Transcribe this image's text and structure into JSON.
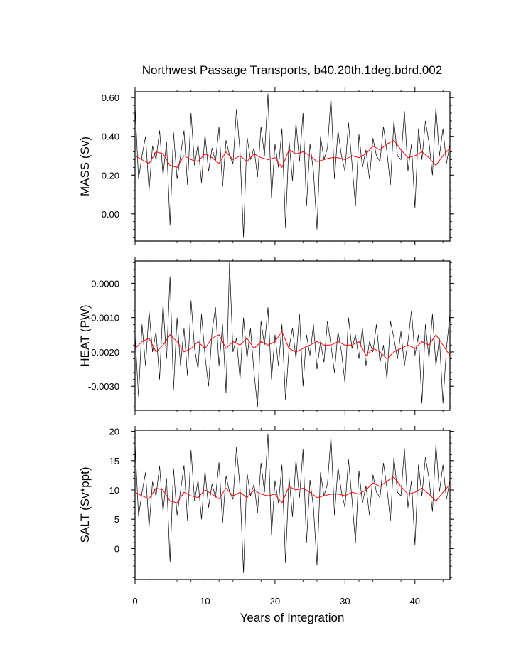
{
  "title": "Northwest Passage Transports, b40.20th.1deg.bdrd.002",
  "xlabel": "Years of Integration",
  "x_ticks": [
    "0",
    "10",
    "20",
    "30",
    "40"
  ],
  "colors": {
    "monthly": "#000000",
    "annual": "#ff0000",
    "frame": "#000000"
  },
  "chart_data": [
    {
      "type": "line",
      "name": "mass",
      "ylabel": "MASS (Sv)",
      "xlim": [
        0,
        45
      ],
      "ylim": [
        -0.14,
        0.63
      ],
      "y_ticks": [
        0.0,
        0.2,
        0.4,
        0.6
      ],
      "y_tick_labels": [
        "0.00",
        "0.20",
        "0.40",
        "0.60"
      ],
      "x": [
        0,
        0.5,
        1,
        1.5,
        2,
        2.5,
        3,
        3.5,
        4,
        4.5,
        5,
        5.5,
        6,
        6.5,
        7,
        7.5,
        8,
        8.5,
        9,
        9.5,
        10,
        10.5,
        11,
        11.5,
        12,
        12.5,
        13,
        13.5,
        14,
        14.5,
        15,
        15.5,
        16,
        16.5,
        17,
        17.5,
        18,
        18.5,
        19,
        19.5,
        20,
        20.5,
        21,
        21.5,
        22,
        22.5,
        23,
        23.5,
        24,
        24.5,
        25,
        25.5,
        26,
        26.5,
        27,
        27.5,
        28,
        28.5,
        29,
        29.5,
        30,
        30.5,
        31,
        31.5,
        32,
        32.5,
        33,
        33.5,
        34,
        34.5,
        35,
        35.5,
        36,
        36.5,
        37,
        37.5,
        38,
        38.5,
        39,
        39.5,
        40,
        40.5,
        41,
        41.5,
        42,
        42.5,
        43,
        43.5,
        44,
        44.5,
        45
      ],
      "monthly_values": [
        0.56,
        0.18,
        0.3,
        0.4,
        0.12,
        0.35,
        0.28,
        0.43,
        0.2,
        0.37,
        -0.06,
        0.42,
        0.18,
        0.3,
        0.43,
        0.15,
        0.52,
        0.25,
        0.36,
        0.16,
        0.41,
        0.22,
        0.34,
        0.27,
        0.45,
        0.14,
        0.38,
        0.3,
        0.26,
        0.54,
        0.32,
        -0.12,
        0.4,
        0.28,
        0.34,
        0.19,
        0.45,
        0.3,
        0.62,
        0.08,
        0.36,
        0.24,
        0.44,
        -0.07,
        0.38,
        0.17,
        0.47,
        0.27,
        0.52,
        0.04,
        0.36,
        0.22,
        -0.08,
        0.4,
        0.28,
        0.34,
        0.6,
        0.18,
        0.43,
        0.3,
        0.22,
        0.47,
        0.26,
        0.04,
        0.41,
        0.24,
        0.33,
        0.18,
        0.39,
        0.3,
        0.27,
        0.45,
        0.32,
        0.15,
        0.48,
        0.3,
        0.28,
        0.53,
        0.22,
        0.36,
        0.03,
        0.44,
        0.28,
        0.48,
        0.37,
        0.2,
        0.55,
        0.3,
        0.44,
        0.26,
        0.36
      ],
      "annual_x": [
        0,
        1,
        2,
        3,
        4,
        5,
        6,
        7,
        8,
        9,
        10,
        11,
        12,
        13,
        14,
        15,
        16,
        17,
        18,
        19,
        20,
        21,
        22,
        23,
        24,
        25,
        26,
        27,
        28,
        29,
        30,
        31,
        32,
        33,
        34,
        35,
        36,
        37,
        38,
        39,
        40,
        41,
        42,
        43,
        44,
        45
      ],
      "annual_values": [
        0.3,
        0.28,
        0.26,
        0.32,
        0.31,
        0.25,
        0.24,
        0.3,
        0.28,
        0.27,
        0.31,
        0.29,
        0.26,
        0.32,
        0.28,
        0.3,
        0.27,
        0.31,
        0.29,
        0.28,
        0.29,
        0.24,
        0.33,
        0.31,
        0.32,
        0.3,
        0.27,
        0.28,
        0.29,
        0.29,
        0.28,
        0.3,
        0.29,
        0.31,
        0.35,
        0.33,
        0.36,
        0.38,
        0.33,
        0.29,
        0.3,
        0.32,
        0.29,
        0.25,
        0.3,
        0.34
      ]
    },
    {
      "type": "line",
      "name": "heat",
      "ylabel": "HEAT (PW)",
      "xlim": [
        0,
        45
      ],
      "ylim": [
        -0.0037,
        0.00065
      ],
      "y_ticks": [
        0.0,
        -0.001,
        -0.002,
        -0.003
      ],
      "y_tick_labels": [
        "0.0000",
        "-0.0010",
        "-0.0020",
        "-0.0030"
      ],
      "x": [
        0,
        0.5,
        1,
        1.5,
        2,
        2.5,
        3,
        3.5,
        4,
        4.5,
        5,
        5.5,
        6,
        6.5,
        7,
        7.5,
        8,
        8.5,
        9,
        9.5,
        10,
        10.5,
        11,
        11.5,
        12,
        12.5,
        13,
        13.5,
        14,
        14.5,
        15,
        15.5,
        16,
        16.5,
        17,
        17.5,
        18,
        18.5,
        19,
        19.5,
        20,
        20.5,
        21,
        21.5,
        22,
        22.5,
        23,
        23.5,
        24,
        24.5,
        25,
        25.5,
        26,
        26.5,
        27,
        27.5,
        28,
        28.5,
        29,
        29.5,
        30,
        30.5,
        31,
        31.5,
        32,
        32.5,
        33,
        33.5,
        34,
        34.5,
        35,
        35.5,
        36,
        36.5,
        37,
        37.5,
        38,
        38.5,
        39,
        39.5,
        40,
        40.5,
        41,
        41.5,
        42,
        42.5,
        43,
        43.5,
        44,
        44.5,
        45
      ],
      "monthly_values": [
        -0.0015,
        -0.0033,
        -0.0012,
        -0.0024,
        -0.0008,
        -0.002,
        -0.0014,
        -0.0028,
        -0.0006,
        -0.0022,
        0.0002,
        -0.0031,
        -0.001,
        -0.0024,
        -0.0013,
        -0.0027,
        -0.0005,
        -0.0019,
        -0.0025,
        -0.0009,
        -0.0021,
        -0.003,
        -0.0014,
        -0.0007,
        -0.0024,
        -0.0012,
        -0.0032,
        0.0006,
        -0.002,
        -0.0016,
        -0.0028,
        -0.001,
        -0.0022,
        -0.0013,
        -0.0026,
        -0.0036,
        -0.0011,
        -0.0018,
        -0.0007,
        -0.0028,
        -0.0015,
        -0.0024,
        -0.0012,
        -0.0034,
        -0.0019,
        -0.0013,
        -0.0022,
        -0.0009,
        -0.003,
        -0.0015,
        -0.0021,
        -0.0012,
        -0.0025,
        -0.0017,
        -0.0023,
        -0.0011,
        -0.0018,
        -0.0026,
        -0.0014,
        -0.002,
        -0.0029,
        -0.001,
        -0.0019,
        -0.0015,
        -0.0022,
        -0.0013,
        -0.0024,
        -0.0017,
        -0.002,
        -0.0012,
        -0.0023,
        -0.0018,
        -0.0028,
        -0.0011,
        -0.0016,
        -0.0022,
        -0.0014,
        -0.0024,
        -0.0017,
        -0.0008,
        -0.0021,
        -0.0015,
        -0.0035,
        -0.0012,
        -0.0022,
        -0.0009,
        -0.0024,
        -0.0016,
        -0.0035,
        -0.0019,
        -0.0009
      ],
      "annual_x": [
        0,
        1,
        2,
        3,
        4,
        5,
        6,
        7,
        8,
        9,
        10,
        11,
        12,
        13,
        14,
        15,
        16,
        17,
        18,
        19,
        20,
        21,
        22,
        23,
        24,
        25,
        26,
        27,
        28,
        29,
        30,
        31,
        32,
        33,
        34,
        35,
        36,
        37,
        38,
        39,
        40,
        41,
        42,
        43,
        44,
        45
      ],
      "annual_values": [
        -0.0019,
        -0.0017,
        -0.0016,
        -0.002,
        -0.0018,
        -0.0015,
        -0.0017,
        -0.002,
        -0.0019,
        -0.0017,
        -0.0019,
        -0.0016,
        -0.0015,
        -0.0019,
        -0.0017,
        -0.0018,
        -0.0016,
        -0.0019,
        -0.0017,
        -0.0018,
        -0.0017,
        -0.0014,
        -0.0019,
        -0.002,
        -0.0019,
        -0.0018,
        -0.0017,
        -0.0018,
        -0.0018,
        -0.0017,
        -0.0018,
        -0.0018,
        -0.0017,
        -0.0021,
        -0.0019,
        -0.002,
        -0.0022,
        -0.002,
        -0.0019,
        -0.0018,
        -0.0019,
        -0.0017,
        -0.0018,
        -0.0015,
        -0.0018,
        -0.0021
      ]
    },
    {
      "type": "line",
      "name": "salt",
      "ylabel": "SALT (Sv*ppt)",
      "xlim": [
        0,
        45
      ],
      "ylim": [
        -5.3,
        20.2
      ],
      "y_ticks": [
        0,
        5,
        10,
        15,
        20
      ],
      "y_tick_labels": [
        "0",
        "5",
        "10",
        "15",
        "20"
      ],
      "x": [
        0,
        0.5,
        1,
        1.5,
        2,
        2.5,
        3,
        3.5,
        4,
        4.5,
        5,
        5.5,
        6,
        6.5,
        7,
        7.5,
        8,
        8.5,
        9,
        9.5,
        10,
        10.5,
        11,
        11.5,
        12,
        12.5,
        13,
        13.5,
        14,
        14.5,
        15,
        15.5,
        16,
        16.5,
        17,
        17.5,
        18,
        18.5,
        19,
        19.5,
        20,
        20.5,
        21,
        21.5,
        22,
        22.5,
        23,
        23.5,
        24,
        24.5,
        25,
        25.5,
        26,
        26.5,
        27,
        27.5,
        28,
        28.5,
        29,
        29.5,
        30,
        30.5,
        31,
        31.5,
        32,
        32.5,
        33,
        33.5,
        34,
        34.5,
        35,
        35.5,
        36,
        36.5,
        37,
        37.5,
        38,
        38.5,
        39,
        39.5,
        40,
        40.5,
        41,
        41.5,
        42,
        42.5,
        43,
        43.5,
        44,
        44.5,
        45
      ],
      "monthly_values": [
        17.8,
        5.5,
        9.6,
        13.0,
        3.6,
        11.4,
        8.9,
        14.1,
        6.3,
        12.0,
        -2.3,
        13.7,
        5.7,
        9.8,
        14.2,
        4.8,
        16.8,
        8.1,
        11.7,
        5.0,
        13.3,
        7.0,
        11.0,
        8.7,
        14.7,
        4.3,
        12.4,
        9.7,
        8.4,
        17.3,
        10.4,
        -4.2,
        13.0,
        9.0,
        11.0,
        6.1,
        14.6,
        9.6,
        19.6,
        2.3,
        11.6,
        7.7,
        14.3,
        -2.5,
        12.3,
        5.4,
        15.2,
        8.7,
        16.9,
        1.0,
        11.7,
        7.0,
        -2.9,
        13.0,
        9.0,
        11.0,
        19.1,
        5.7,
        13.9,
        9.7,
        7.0,
        15.2,
        8.4,
        1.0,
        13.3,
        7.7,
        10.7,
        5.7,
        12.6,
        9.6,
        8.7,
        14.6,
        10.3,
        4.8,
        15.6,
        9.6,
        9.0,
        17.1,
        7.0,
        11.6,
        0.6,
        14.3,
        9.0,
        15.6,
        12.0,
        6.3,
        17.8,
        9.7,
        14.3,
        8.4,
        11.7
      ],
      "annual_x": [
        0,
        1,
        2,
        3,
        4,
        5,
        6,
        7,
        8,
        9,
        10,
        11,
        12,
        13,
        14,
        15,
        16,
        17,
        18,
        19,
        20,
        21,
        22,
        23,
        24,
        25,
        26,
        27,
        28,
        29,
        30,
        31,
        32,
        33,
        34,
        35,
        36,
        37,
        38,
        39,
        40,
        41,
        42,
        43,
        44,
        45
      ],
      "annual_values": [
        9.6,
        9.0,
        8.5,
        10.3,
        10.0,
        8.1,
        7.8,
        9.6,
        9.0,
        8.7,
        10.0,
        9.3,
        8.5,
        10.3,
        9.0,
        9.6,
        8.7,
        10.0,
        9.3,
        9.0,
        9.3,
        7.8,
        10.6,
        10.0,
        10.3,
        9.6,
        8.7,
        9.0,
        9.3,
        9.3,
        9.0,
        9.6,
        9.3,
        10.0,
        11.2,
        10.6,
        11.5,
        12.2,
        10.6,
        9.3,
        9.6,
        10.3,
        9.3,
        8.1,
        9.6,
        11.0
      ]
    }
  ]
}
